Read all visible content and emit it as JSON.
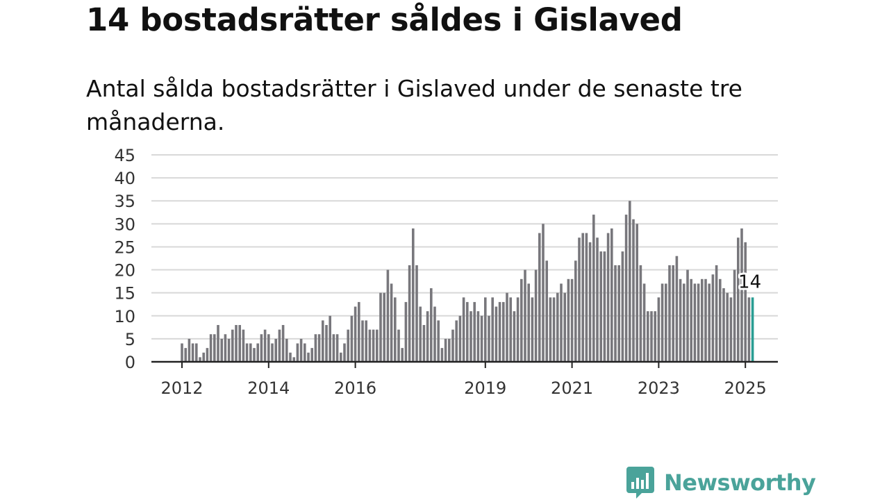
{
  "title": "14 bostadsrätter såldes i Gislaved",
  "subtitle": "Antal sålda bostadsrätter i Gislaved under de senaste tre månaderna.",
  "brand": {
    "name": "Newsworthy",
    "icon": "newsworthy-logo-icon",
    "color": "#4aa39a"
  },
  "colors": {
    "bar": "#78777c",
    "highlight": "#2a9d93",
    "grid": "#d8d8d8",
    "axis": "#222222"
  },
  "chart_data": {
    "type": "bar",
    "title": "14 bostadsrätter såldes i Gislaved",
    "xlabel": "",
    "ylabel": "",
    "ylim": [
      0,
      45
    ],
    "yticks": [
      0,
      5,
      10,
      15,
      20,
      25,
      30,
      35,
      40,
      45
    ],
    "xtick_labels": [
      {
        "label": "2012",
        "index": 0
      },
      {
        "label": "2014",
        "index": 24
      },
      {
        "label": "2016",
        "index": 48
      },
      {
        "label": "2019",
        "index": 84
      },
      {
        "label": "2021",
        "index": 108
      },
      {
        "label": "2023",
        "index": 132
      },
      {
        "label": "2025",
        "index": 156
      }
    ],
    "grid": true,
    "highlight_last": true,
    "last_value_label": "14",
    "values": [
      4,
      3,
      5,
      4,
      4,
      1,
      2,
      3,
      6,
      6,
      8,
      5,
      6,
      5,
      7,
      8,
      8,
      7,
      4,
      4,
      3,
      4,
      6,
      7,
      6,
      4,
      5,
      7,
      8,
      5,
      2,
      1,
      4,
      5,
      4,
      2,
      3,
      6,
      6,
      9,
      8,
      10,
      6,
      6,
      2,
      4,
      7,
      10,
      12,
      13,
      9,
      9,
      7,
      7,
      7,
      15,
      15,
      20,
      17,
      14,
      7,
      3,
      13,
      21,
      29,
      21,
      12,
      8,
      11,
      16,
      12,
      9,
      3,
      5,
      5,
      7,
      9,
      10,
      14,
      13,
      11,
      13,
      11,
      10,
      14,
      10,
      14,
      12,
      13,
      13,
      15,
      14,
      11,
      14,
      18,
      20,
      17,
      14,
      20,
      28,
      30,
      22,
      14,
      14,
      15,
      17,
      15,
      18,
      18,
      22,
      27,
      28,
      28,
      26,
      32,
      27,
      24,
      24,
      28,
      29,
      21,
      21,
      24,
      32,
      35,
      31,
      30,
      21,
      17,
      11,
      11,
      11,
      14,
      17,
      17,
      21,
      21,
      23,
      18,
      17,
      20,
      18,
      17,
      17,
      18,
      18,
      17,
      19,
      21,
      18,
      16,
      15,
      14,
      20,
      27,
      29,
      26,
      14,
      14
    ]
  }
}
